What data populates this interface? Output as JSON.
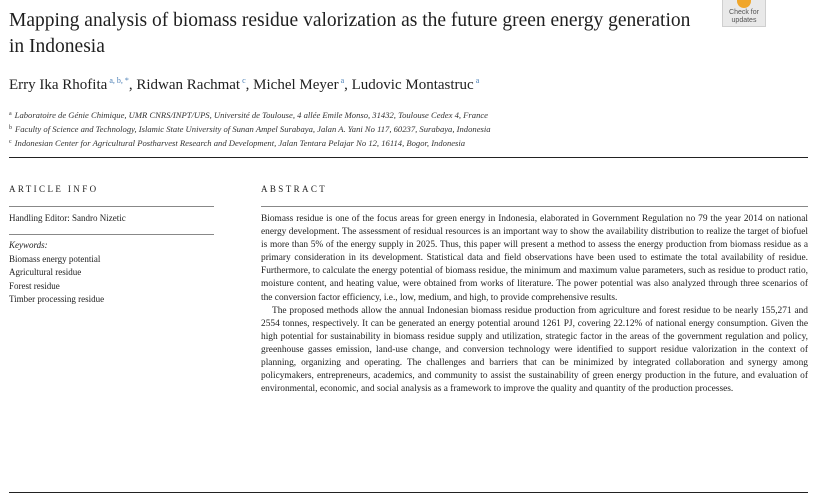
{
  "title": "Mapping analysis of biomass residue valorization as the future green energy generation in Indonesia",
  "badge": {
    "line1": "Check for",
    "line2": "updates"
  },
  "authors": [
    {
      "name": "Erry Ika Rhofita",
      "sup": "a, b, *"
    },
    {
      "name": "Ridwan Rachmat",
      "sup": "c"
    },
    {
      "name": "Michel Meyer",
      "sup": "a"
    },
    {
      "name": "Ludovic Montastruc",
      "sup": "a"
    }
  ],
  "affiliations": [
    {
      "key": "a",
      "text": "Laboratoire de Génie Chimique, UMR CNRS/INPT/UPS, Université de Toulouse, 4 allée Emile Monso, 31432, Toulouse Cedex 4, France"
    },
    {
      "key": "b",
      "text": "Faculty of Science and Technology, Islamic State University of Sunan Ampel Surabaya, Jalan A. Yani No 117, 60237, Surabaya, Indonesia"
    },
    {
      "key": "c",
      "text": "Indonesian Center for Agricultural Postharvest Research and Development, Jalan Tentara Pelajar No 12, 16114, Bogor, Indonesia"
    }
  ],
  "article_info": {
    "heading": "ARTICLE INFO",
    "handling_editor": "Handling Editor: Sandro Nizetic",
    "keywords_label": "Keywords:",
    "keywords": [
      "Biomass energy potential",
      "Agricultural residue",
      "Forest residue",
      "Timber processing residue"
    ]
  },
  "abstract": {
    "heading": "ABSTRACT",
    "paragraph1": "Biomass residue is one of the focus areas for green energy in Indonesia, elaborated in Government Regulation no 79 the year 2014 on national energy development. The assessment of residual resources is an important way to show the availability distribution to realize the target of biofuel is more than 5% of the energy supply in 2025. Thus, this paper will present a method to assess the energy production from biomass residue as a primary consideration in its development. Statistical data and field observations have been used to estimate the total availability of residue. Furthermore, to calculate the energy potential of biomass residue, the minimum and maximum value parameters, such as residue to product ratio, moisture content, and heating value, were obtained from works of literature. The power potential was also analyzed through three scenarios of the conversion factor efficiency, i.e., low, medium, and high, to provide comprehensive results.",
    "paragraph2": "The proposed methods allow the annual Indonesian biomass residue production from agriculture and forest residue to be nearly 155,271 and 2554 tonnes, respectively. It can be generated an energy potential around 1261 PJ, covering 22.12% of national energy consumption. Given the high potential for sustainability in biomass residue supply and utilization, strategic factor in the areas of the government regulation and policy, greenhouse gasses emission, land-use change, and conversion technology were identified to support residue valorization in the context of planning, organizing and operating. The challenges and barriers that can be minimized by integrated collaboration and synergy among policymakers, entrepreneurs, academics, and community to assist the sustainability of green energy production in the future, and evaluation of environmental, economic, and social analysis as a framework to improve the quality and quantity of the production processes."
  }
}
